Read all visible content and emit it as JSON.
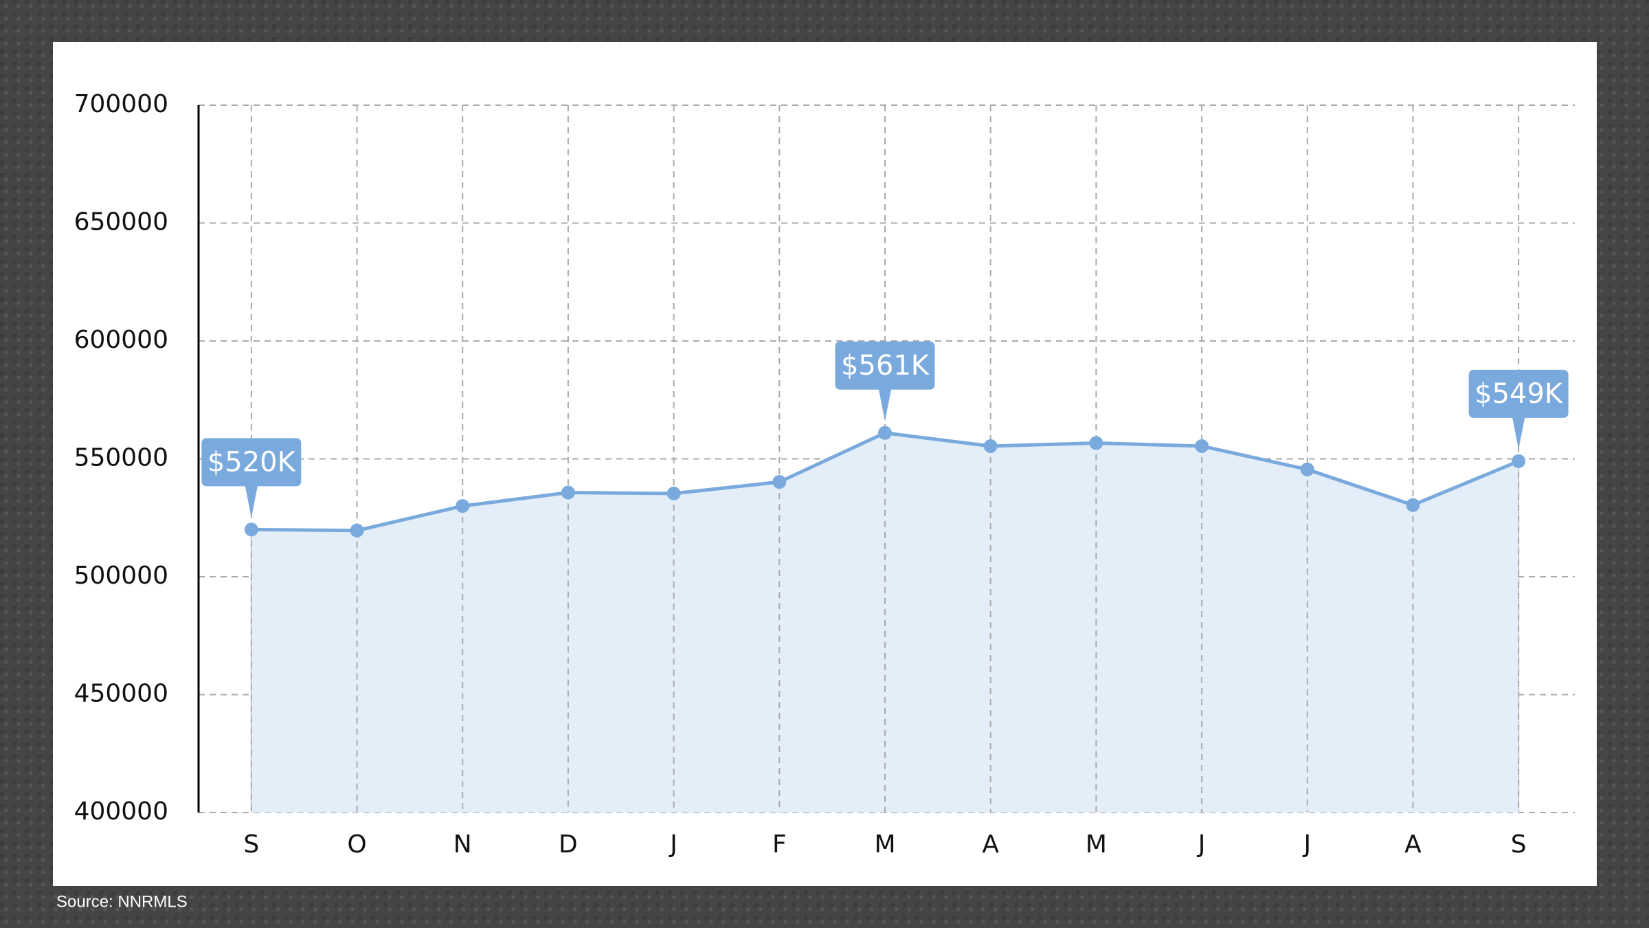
{
  "chart_data": {
    "type": "line",
    "categories": [
      "S",
      "O",
      "N",
      "D",
      "J",
      "F",
      "M",
      "A",
      "M",
      "J",
      "J",
      "A",
      "S"
    ],
    "values": [
      520000,
      519600,
      530000,
      535700,
      535300,
      540200,
      561000,
      555400,
      556700,
      555400,
      545500,
      530400,
      549000
    ],
    "value_labels": [
      "$520K",
      null,
      null,
      null,
      null,
      null,
      "$561K",
      null,
      null,
      null,
      null,
      null,
      "$549K"
    ],
    "color": "#7aaadd",
    "ylim": [
      400000,
      700000
    ],
    "yticks": [
      400000,
      450000,
      500000,
      550000,
      600000,
      650000,
      700000
    ],
    "grid": true,
    "source": "Source: NNRMLS"
  }
}
